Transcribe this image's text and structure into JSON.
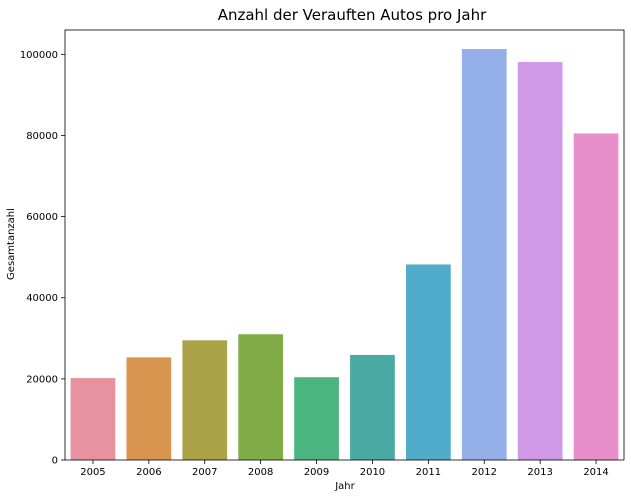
{
  "chart_data": {
    "type": "bar",
    "title": "Anzahl der Verauften Autos pro Jahr",
    "xlabel": "Jahr",
    "ylabel": "Gesamtanzahl",
    "categories": [
      "2005",
      "2006",
      "2007",
      "2008",
      "2009",
      "2010",
      "2011",
      "2012",
      "2013",
      "2014"
    ],
    "values": [
      20200,
      25300,
      29500,
      31000,
      20400,
      25900,
      48200,
      101300,
      98100,
      80500
    ],
    "colors": [
      "#e8929f",
      "#d9944f",
      "#aba146",
      "#80ad48",
      "#4cb47f",
      "#4aaaa3",
      "#51abcb",
      "#94aee8",
      "#cf99e8",
      "#e88ecb"
    ],
    "ylim": [
      0,
      106000
    ],
    "yticks": [
      0,
      20000,
      40000,
      60000,
      80000,
      100000
    ],
    "ytick_labels": [
      "0",
      "20000",
      "40000",
      "60000",
      "80000",
      "100000"
    ],
    "grid": false,
    "legend": "none"
  }
}
